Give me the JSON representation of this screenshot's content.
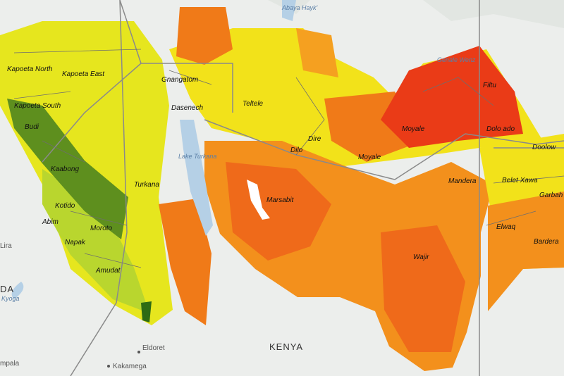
{
  "labels": {
    "kapoeta_north": "Kapoeta North",
    "kapoeta_east": "Kapoeta East",
    "kapoeta_south": "Kapoeta South",
    "budi": "Budi",
    "kaabong": "Kaabong",
    "kotido": "Kotido",
    "abim": "Abim",
    "moroto": "Moroto",
    "napak": "Napak",
    "amudat": "Amudat",
    "turkana": "Turkana",
    "gnangatom": "Gnangatom",
    "dasenech": "Dasenech",
    "teltele": "Teltele",
    "lake_turkana": "Lake Turkana",
    "dire": "Dire",
    "dilo": "Dilo",
    "moyale_ke": "Moyale",
    "moyale_et": "Moyale",
    "marsabit": "Marsabit",
    "filtu": "Filtu",
    "dolo_ado": "Dolo ado",
    "doolow": "Doolow",
    "mandera": "Mandera",
    "belet_xawa": "Belet Xawa",
    "garbaharey": "Garbah",
    "elwaq": "Elwaq",
    "bardera": "Bardera",
    "wajir": "Wajir",
    "kenya": "KENYA",
    "eldoret": "Eldoret",
    "kakamega": "Kakamega",
    "lira": "Lira",
    "kyoga": "Kyoga",
    "kampala": "mpala",
    "uganda": "DA",
    "abaya": "Abaya Hayk'",
    "genale": "Genale Wenz"
  }
}
